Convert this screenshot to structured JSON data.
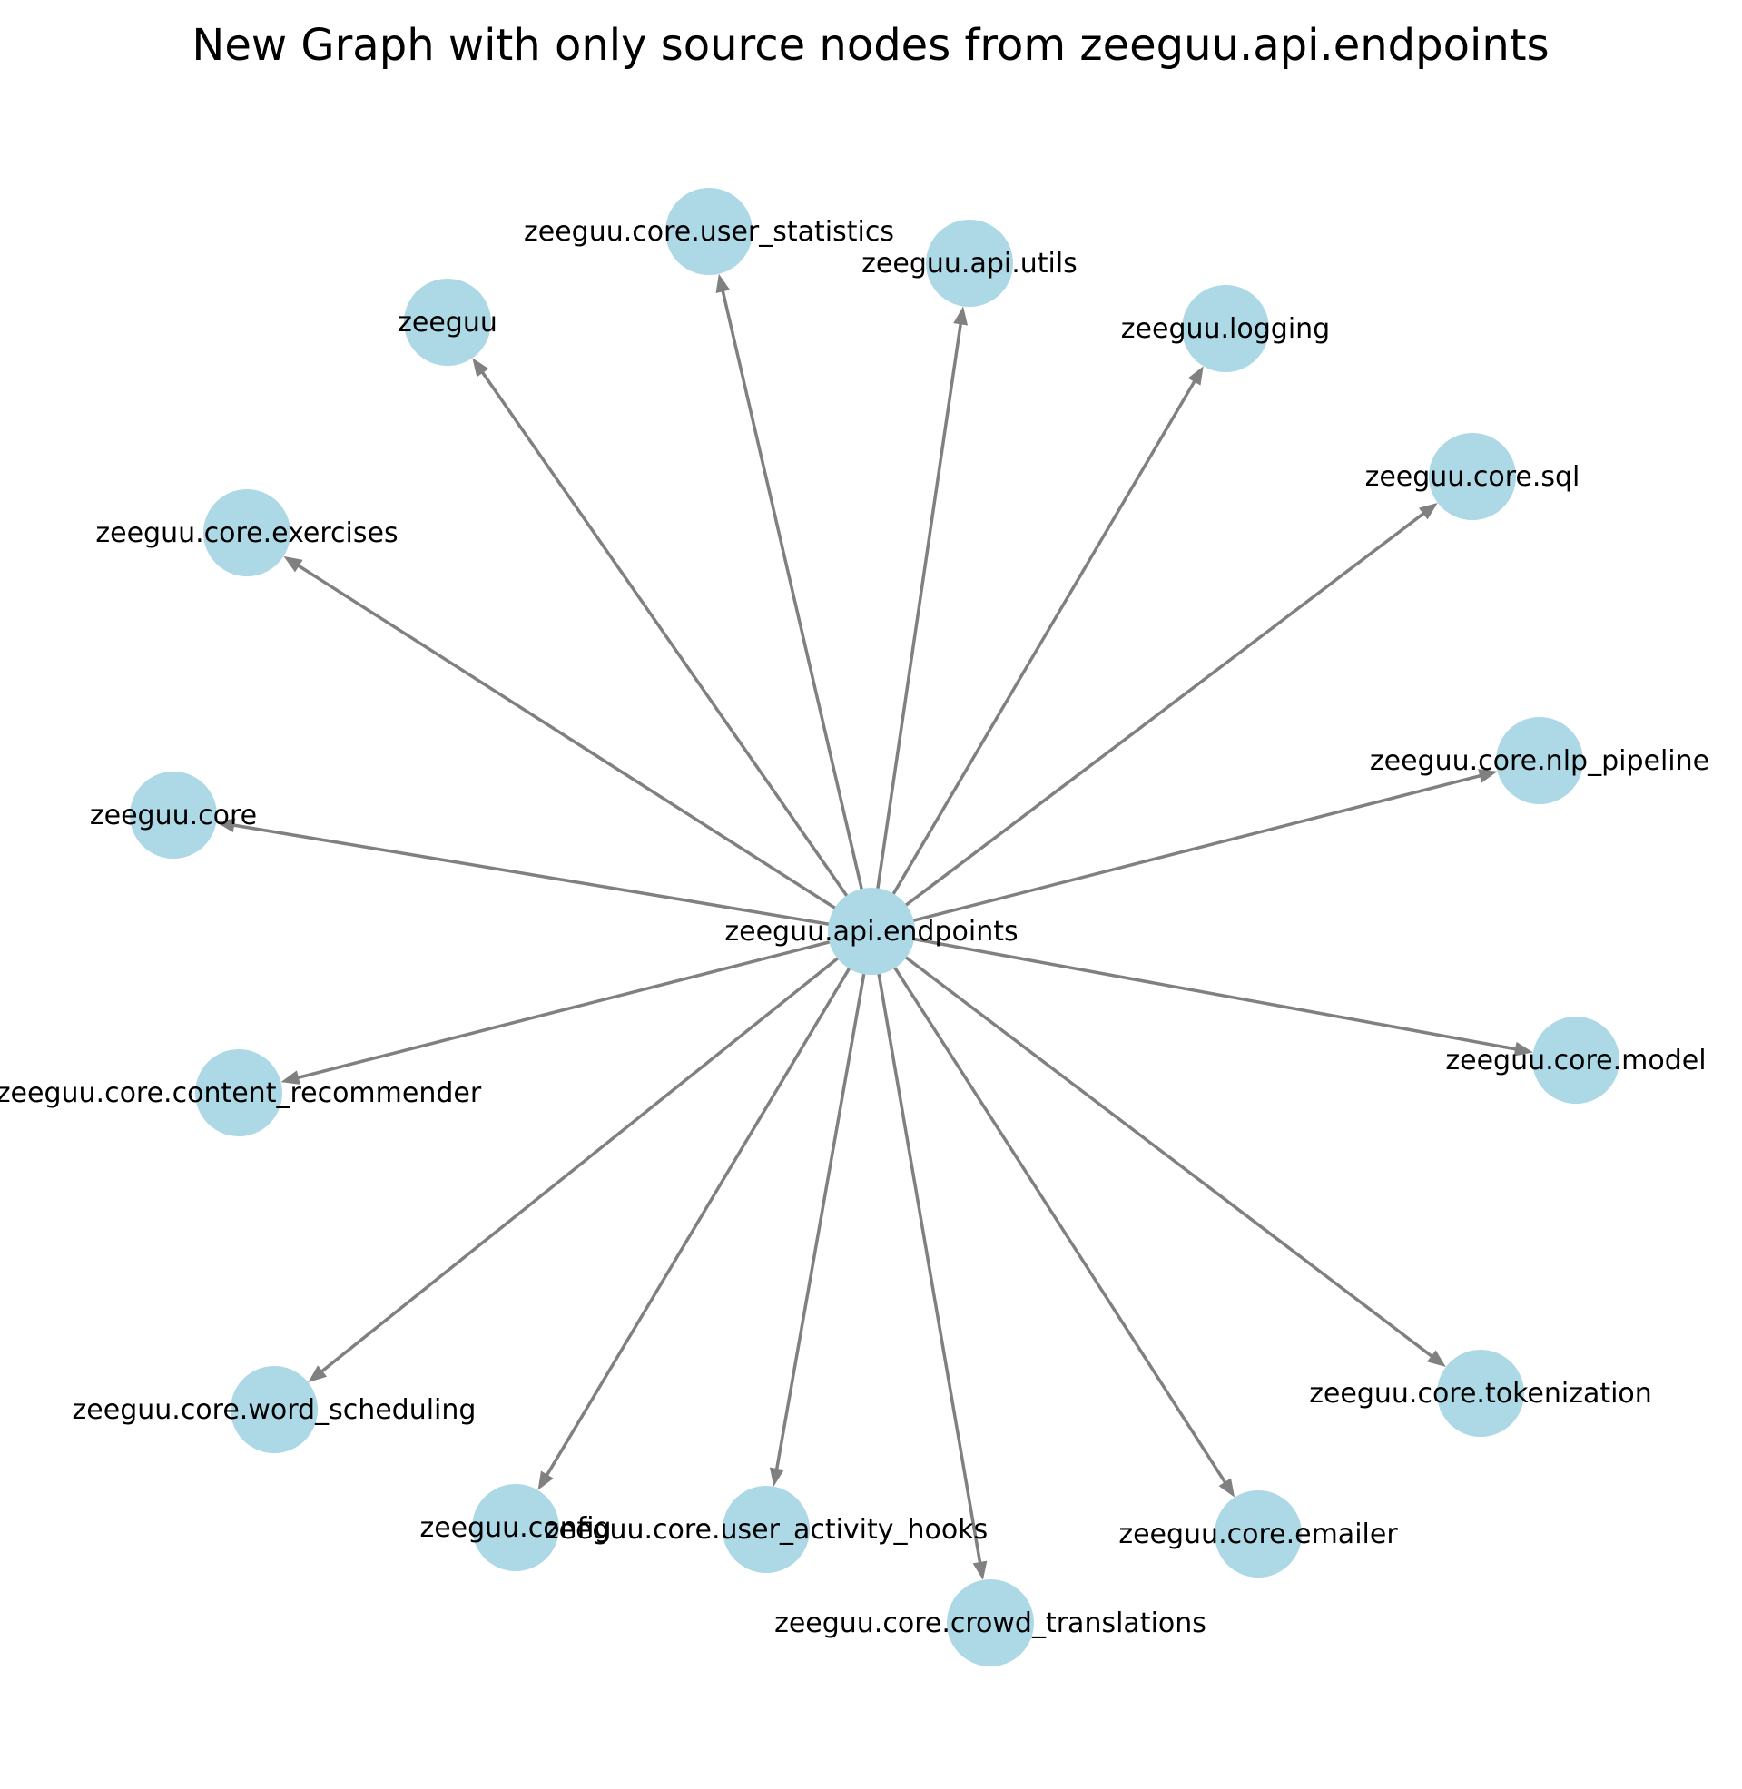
{
  "title": "New Graph with only source nodes from zeeguu.api.endpoints",
  "colors": {
    "node_fill": "#add8e6",
    "edge": "#808080",
    "label": "#000000",
    "background": "#ffffff"
  },
  "graph": {
    "source": "zeeguu.api.endpoints",
    "targets": [
      "zeeguu.core.user_statistics",
      "zeeguu.api.utils",
      "zeeguu",
      "zeeguu.logging",
      "zeeguu.core.sql",
      "zeeguu.core.exercises",
      "zeeguu.core.nlp_pipeline",
      "zeeguu.core",
      "zeeguu.core.model",
      "zeeguu.core.content_recommender",
      "zeeguu.core.tokenization",
      "zeeguu.core.word_scheduling",
      "zeeguu.config",
      "zeeguu.core.user_activity_hooks",
      "zeeguu.core.emailer",
      "zeeguu.core.crowd_translations"
    ]
  }
}
